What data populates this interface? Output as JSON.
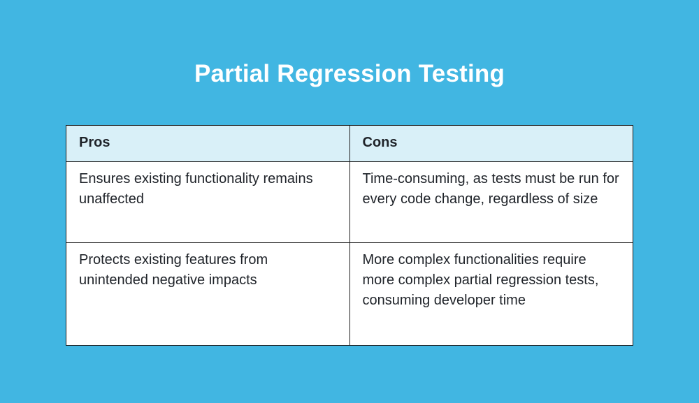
{
  "title": "Partial Regression Testing",
  "table": {
    "headers": [
      "Pros",
      "Cons"
    ],
    "rows": [
      [
        "Ensures existing functionality remains unaffected",
        "Time-consuming, as tests must be run for every code change, regardless of size"
      ],
      [
        "Protects existing features from unintended negative impacts",
        "More complex functionalities require more complex partial regression tests, consuming developer time"
      ]
    ]
  },
  "colors": {
    "background": "#41b6e2",
    "header_background": "#d9f0f8",
    "title": "#ffffff"
  }
}
